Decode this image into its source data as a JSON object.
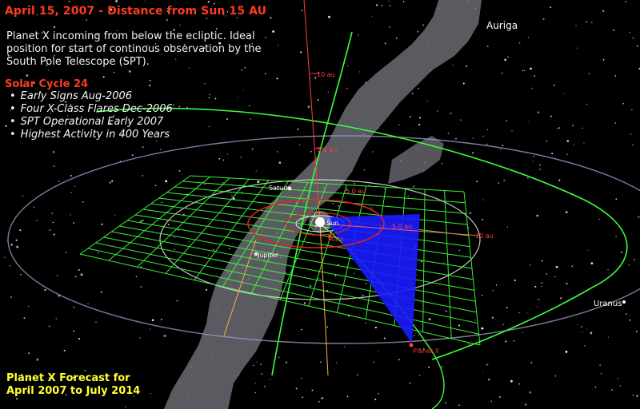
{
  "header": {
    "title": "April 15, 2007 - Distance from Sun 15 AU",
    "intro": "Planet X incoming from below the ecliptic.  Ideal position for start of continous observation by the South Pole Telescope (SPT)."
  },
  "solar_cycle": {
    "title": "Solar Cycle 24",
    "bullets": [
      "Early Signs Aug-2006",
      "Four X-Class Flares Dec-2006",
      "SPT Operational Early 2007",
      "Highest Activity in 400 Years"
    ]
  },
  "forecast": {
    "line1": "Planet X Forecast for",
    "line2": "April 2007 to July 2014"
  },
  "labels": {
    "auriga": "Auriga",
    "uranus": "Uranus",
    "saturn": "Saturn",
    "jupiter": "Jupiter",
    "mars": "Mars",
    "sun": "Sun",
    "planet_x": "Planet X",
    "au_10_top": "10 au",
    "au_5_axis": "5.0 au",
    "au_5_a": "5.0 au",
    "au_5_b": "5.0 au",
    "au_10_right": "10 au"
  },
  "colors": {
    "background": "#000000",
    "title_red": "#ff3b1f",
    "text_white": "#f2f2f2",
    "forecast_yellow": "#ffff30",
    "grid_green": "#3cff3c",
    "orbit_red": "#e02020",
    "planet_x_blue": "#1a1aff",
    "milky_way_gray": "#6a6a72"
  }
}
